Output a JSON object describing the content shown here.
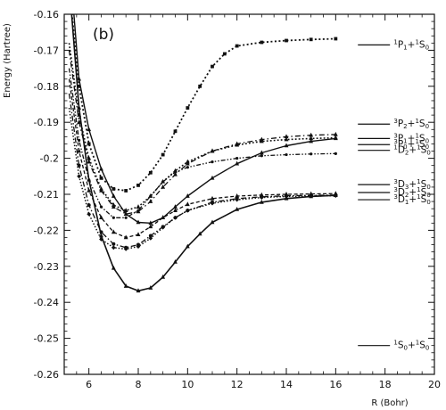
{
  "chart_data": {
    "type": "line",
    "panel_label": "(b)",
    "xlabel": "R (Bohr)",
    "ylabel": "Energy (Hartree)",
    "xlim": [
      5,
      20
    ],
    "ylim": [
      -0.26,
      -0.16
    ],
    "x_ticks": [
      "6",
      "8",
      "10",
      "12",
      "14",
      "16",
      "18",
      "20"
    ],
    "y_ticks": [
      "-0.16",
      "-0.17",
      "-0.18",
      "-0.19",
      "-0.2",
      "-0.21",
      "-0.22",
      "-0.23",
      "-0.24",
      "-0.25",
      "-0.26"
    ],
    "grid": false,
    "series": [
      {
        "style": "dotted-squares",
        "points": [
          [
            5.2,
            -0.152
          ],
          [
            5.6,
            -0.18
          ],
          [
            6.0,
            -0.196
          ],
          [
            6.5,
            -0.2055
          ],
          [
            7.0,
            -0.2085
          ],
          [
            7.5,
            -0.209
          ],
          [
            8.0,
            -0.2075
          ],
          [
            8.5,
            -0.204
          ],
          [
            9.0,
            -0.199
          ],
          [
            9.5,
            -0.1925
          ],
          [
            10.0,
            -0.186
          ],
          [
            10.5,
            -0.18
          ],
          [
            11.0,
            -0.1745
          ],
          [
            11.5,
            -0.171
          ],
          [
            12.0,
            -0.1688
          ],
          [
            13.0,
            -0.1678
          ],
          [
            14.0,
            -0.1673
          ],
          [
            15.0,
            -0.167
          ],
          [
            16.0,
            -0.1668
          ]
        ]
      },
      {
        "style": "solid-triangles",
        "points": [
          [
            5.3,
            -0.152
          ],
          [
            5.6,
            -0.178
          ],
          [
            6.0,
            -0.192
          ],
          [
            6.5,
            -0.203
          ],
          [
            7.0,
            -0.2105
          ],
          [
            7.5,
            -0.2155
          ],
          [
            8.0,
            -0.2178
          ],
          [
            8.5,
            -0.218
          ],
          [
            9.0,
            -0.2165
          ],
          [
            9.5,
            -0.2135
          ],
          [
            10.0,
            -0.2105
          ],
          [
            11.0,
            -0.2055
          ],
          [
            12.0,
            -0.2015
          ],
          [
            13.0,
            -0.1985
          ],
          [
            14.0,
            -0.1965
          ],
          [
            15.0,
            -0.1953
          ],
          [
            16.0,
            -0.1945
          ]
        ]
      },
      {
        "style": "dash-dot-triangles",
        "points": [
          [
            5.2,
            -0.17
          ],
          [
            5.6,
            -0.19
          ],
          [
            6.0,
            -0.201
          ],
          [
            6.5,
            -0.209
          ],
          [
            7.0,
            -0.2135
          ],
          [
            7.5,
            -0.2155
          ],
          [
            8.0,
            -0.2148
          ],
          [
            8.5,
            -0.212
          ],
          [
            9.0,
            -0.208
          ],
          [
            9.5,
            -0.2045
          ],
          [
            10.0,
            -0.2015
          ],
          [
            11.0,
            -0.198
          ],
          [
            12.0,
            -0.196
          ],
          [
            13.0,
            -0.1948
          ],
          [
            14.0,
            -0.194
          ],
          [
            15.0,
            -0.1936
          ],
          [
            16.0,
            -0.1934
          ]
        ]
      },
      {
        "style": "dotted-triangles",
        "points": [
          [
            5.2,
            -0.168
          ],
          [
            5.6,
            -0.188
          ],
          [
            6.0,
            -0.2
          ],
          [
            6.5,
            -0.2085
          ],
          [
            7.0,
            -0.213
          ],
          [
            7.5,
            -0.2145
          ],
          [
            8.0,
            -0.2135
          ],
          [
            8.5,
            -0.2105
          ],
          [
            9.0,
            -0.2065
          ],
          [
            9.5,
            -0.2035
          ],
          [
            10.0,
            -0.201
          ],
          [
            11.0,
            -0.198
          ],
          [
            12.0,
            -0.1963
          ],
          [
            13.0,
            -0.1953
          ],
          [
            14.0,
            -0.1948
          ],
          [
            15.0,
            -0.1945
          ],
          [
            16.0,
            -0.1943
          ]
        ]
      },
      {
        "style": "dash-dot-dot",
        "points": [
          [
            5.2,
            -0.175
          ],
          [
            5.6,
            -0.195
          ],
          [
            6.0,
            -0.206
          ],
          [
            6.5,
            -0.2135
          ],
          [
            7.0,
            -0.2165
          ],
          [
            7.5,
            -0.2165
          ],
          [
            8.0,
            -0.2145
          ],
          [
            8.5,
            -0.2105
          ],
          [
            9.0,
            -0.2065
          ],
          [
            9.5,
            -0.2038
          ],
          [
            10.0,
            -0.2025
          ],
          [
            11.0,
            -0.201
          ],
          [
            12.0,
            -0.2
          ],
          [
            13.0,
            -0.1993
          ],
          [
            14.0,
            -0.199
          ],
          [
            15.0,
            -0.1988
          ],
          [
            16.0,
            -0.1987
          ]
        ]
      },
      {
        "style": "dashed-triangles",
        "points": [
          [
            5.2,
            -0.178
          ],
          [
            5.6,
            -0.198
          ],
          [
            6.0,
            -0.209
          ],
          [
            6.5,
            -0.2165
          ],
          [
            7.0,
            -0.2205
          ],
          [
            7.5,
            -0.222
          ],
          [
            8.0,
            -0.2212
          ],
          [
            8.5,
            -0.219
          ],
          [
            9.0,
            -0.2165
          ],
          [
            9.5,
            -0.2145
          ],
          [
            10.0,
            -0.2128
          ],
          [
            11.0,
            -0.2112
          ],
          [
            12.0,
            -0.2105
          ],
          [
            13.0,
            -0.2102
          ],
          [
            14.0,
            -0.21
          ],
          [
            15.0,
            -0.2099
          ],
          [
            16.0,
            -0.2098
          ]
        ]
      },
      {
        "style": "dash-dot-circles",
        "points": [
          [
            5.2,
            -0.182
          ],
          [
            5.6,
            -0.202
          ],
          [
            6.0,
            -0.213
          ],
          [
            6.5,
            -0.2205
          ],
          [
            7.0,
            -0.2238
          ],
          [
            7.5,
            -0.2248
          ],
          [
            8.0,
            -0.224
          ],
          [
            8.5,
            -0.2215
          ],
          [
            9.0,
            -0.219
          ],
          [
            9.5,
            -0.2165
          ],
          [
            10.0,
            -0.2145
          ],
          [
            11.0,
            -0.2122
          ],
          [
            12.0,
            -0.2112
          ],
          [
            13.0,
            -0.2107
          ],
          [
            14.0,
            -0.2104
          ],
          [
            15.0,
            -0.2103
          ],
          [
            16.0,
            -0.2102
          ]
        ]
      },
      {
        "style": "dotted-diamonds",
        "points": [
          [
            5.2,
            -0.186
          ],
          [
            5.6,
            -0.205
          ],
          [
            6.0,
            -0.2155
          ],
          [
            6.5,
            -0.2225
          ],
          [
            7.0,
            -0.2248
          ],
          [
            7.5,
            -0.2252
          ],
          [
            8.0,
            -0.2245
          ],
          [
            8.5,
            -0.2222
          ],
          [
            9.0,
            -0.2192
          ],
          [
            9.5,
            -0.2165
          ],
          [
            10.0,
            -0.2145
          ],
          [
            11.0,
            -0.2125
          ],
          [
            12.0,
            -0.2115
          ],
          [
            13.0,
            -0.2109
          ],
          [
            14.0,
            -0.2106
          ],
          [
            15.0,
            -0.2105
          ],
          [
            16.0,
            -0.2104
          ]
        ]
      },
      {
        "style": "solid-triangles-ground",
        "points": [
          [
            5.3,
            -0.16
          ],
          [
            5.6,
            -0.186
          ],
          [
            6.0,
            -0.206
          ],
          [
            6.5,
            -0.2215
          ],
          [
            7.0,
            -0.2305
          ],
          [
            7.5,
            -0.2355
          ],
          [
            8.0,
            -0.2368
          ],
          [
            8.5,
            -0.236
          ],
          [
            9.0,
            -0.233
          ],
          [
            9.5,
            -0.2288
          ],
          [
            10.0,
            -0.2245
          ],
          [
            10.5,
            -0.221
          ],
          [
            11.0,
            -0.2178
          ],
          [
            12.0,
            -0.2142
          ],
          [
            13.0,
            -0.2122
          ],
          [
            14.0,
            -0.2112
          ],
          [
            15.0,
            -0.2106
          ],
          [
            16.0,
            -0.2103
          ]
        ]
      }
    ],
    "asymptotes": [
      {
        "y": -0.1685,
        "sup": "1",
        "term": "P",
        "sub": "1",
        "rest": "+",
        "sup2": "1",
        "term2": "S",
        "sub2": "0"
      },
      {
        "y": -0.1905,
        "sup": "3",
        "term": "P",
        "sub": "2",
        "rest": "+",
        "sup2": "1",
        "term2": "S",
        "sub2": "0"
      },
      {
        "y": -0.1945,
        "sup": "3",
        "term": "P",
        "sub": "1",
        "rest": "+",
        "sup2": "1",
        "term2": "S",
        "sub2": "0"
      },
      {
        "y": -0.1962,
        "sup": "3",
        "term": "P",
        "sub": "0",
        "rest": "+",
        "sup2": "1",
        "term2": "S",
        "sub2": "0"
      },
      {
        "y": -0.1978,
        "sup": "1",
        "term": "D",
        "sub": "2",
        "rest": "+",
        "sup2": "1",
        "term2": "S",
        "sub2": "0"
      },
      {
        "y": -0.2073,
        "sup": "3",
        "term": "D",
        "sub": "3",
        "rest": "+",
        "sup2": "1",
        "term2": "S",
        "sub2": "0"
      },
      {
        "y": -0.2095,
        "sup": "3",
        "term": "D",
        "sub": "2",
        "rest": "+",
        "sup2": "1",
        "term2": "S",
        "sub2": "0"
      },
      {
        "y": -0.2115,
        "sup": "3",
        "term": "D",
        "sub": "1",
        "rest": "+",
        "sup2": "1",
        "term2": "S",
        "sub2": "0"
      },
      {
        "y": -0.252,
        "sup": "1",
        "term": "S",
        "sub": "0",
        "rest": "+",
        "sup2": "1",
        "term2": "S",
        "sub2": "0"
      }
    ]
  }
}
